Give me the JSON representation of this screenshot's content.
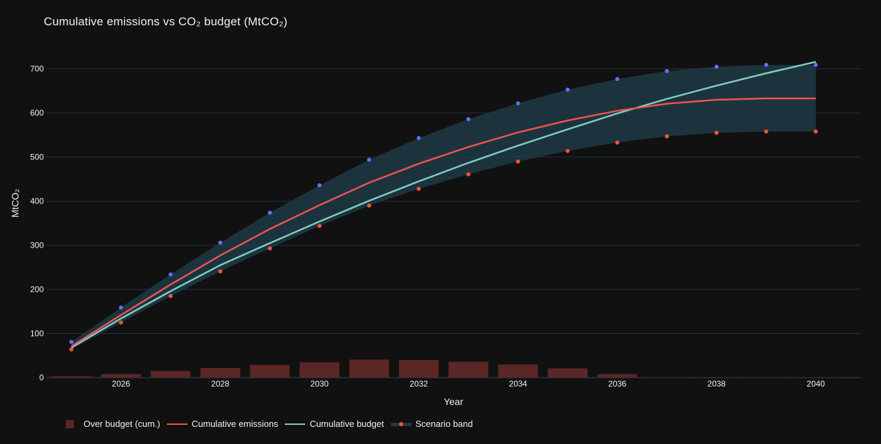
{
  "title": "Cumulative emissions vs CO₂ budget (MtCO₂)",
  "colors": {
    "background": "#111111",
    "grid": "#283142",
    "over_budget": "#5a2626",
    "emissions": "#ef5350",
    "budget": "#7fcdc4",
    "band_fill": "#1e3a45",
    "band_upper_marker": "#636efa",
    "band_lower_marker": "#ef553b"
  },
  "legend": {
    "over_budget": "Over budget (cum.)",
    "emissions": "Cumulative emissions",
    "budget": "Cumulative budget",
    "band": "Scenario band"
  },
  "chart_data": {
    "type": "line",
    "title": "Cumulative emissions vs CO₂ budget (MtCO₂)",
    "xlabel": "Year",
    "ylabel": "MtCO₂",
    "xlim": [
      2024.5,
      2040.9
    ],
    "ylim": [
      0,
      760
    ],
    "x_ticks": [
      2026,
      2028,
      2030,
      2032,
      2034,
      2036,
      2038,
      2040
    ],
    "y_ticks": [
      0,
      100,
      200,
      300,
      400,
      500,
      600,
      700
    ],
    "grid": true,
    "legend_position": "bottom-left",
    "x": [
      2025,
      2026,
      2027,
      2028,
      2029,
      2030,
      2031,
      2032,
      2033,
      2034,
      2035,
      2036,
      2037,
      2038,
      2039,
      2040
    ],
    "series": [
      {
        "name": "Over budget (cum.)",
        "type": "bar",
        "values": [
          3,
          8,
          15,
          22,
          29,
          35,
          41,
          40,
          36,
          30,
          21,
          8,
          1,
          1,
          1,
          1
        ]
      },
      {
        "name": "Cumulative emissions",
        "type": "line",
        "values": [
          71,
          142,
          211,
          277,
          337,
          391,
          442,
          485,
          523,
          556,
          583,
          605,
          621,
          630,
          633,
          633
        ]
      },
      {
        "name": "Cumulative budget",
        "type": "line",
        "values": [
          68,
          134,
          196,
          255,
          305,
          354,
          401,
          445,
          487,
          526,
          563,
          599,
          632,
          662,
          690,
          716
        ]
      },
      {
        "name": "Scenario band",
        "type": "band",
        "upper": [
          81,
          159,
          234,
          306,
          374,
          436,
          494,
          543,
          586,
          622,
          653,
          677,
          695,
          705,
          709,
          709
        ],
        "lower": [
          64,
          125,
          185,
          241,
          293,
          344,
          390,
          428,
          461,
          490,
          514,
          533,
          547,
          555,
          558,
          558
        ]
      }
    ]
  }
}
